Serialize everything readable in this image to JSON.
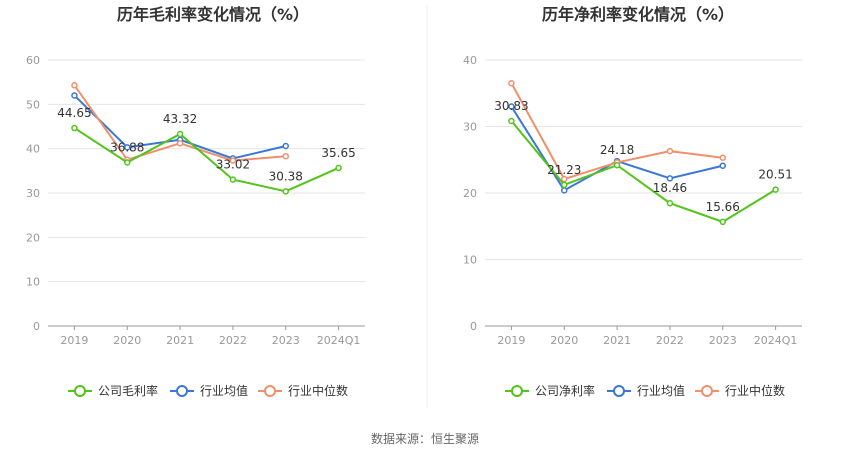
{
  "source_text": "数据来源：恒生聚源",
  "colors": {
    "company": "#52c41a",
    "industry_avg": "#3a77d8",
    "industry_median": "#f0906a"
  },
  "chart_data": [
    {
      "type": "line",
      "title": "历年毛利率变化情况（%）",
      "categories": [
        "2019",
        "2020",
        "2021",
        "2022",
        "2023",
        "2024Q1"
      ],
      "ylim": [
        0,
        60
      ],
      "yticks": [
        0,
        10,
        20,
        30,
        40,
        50,
        60
      ],
      "grid": true,
      "legend_position": "bottom",
      "series": [
        {
          "name": "公司毛利率",
          "key": "company",
          "values": [
            44.65,
            36.88,
            43.32,
            33.02,
            30.38,
            35.65
          ],
          "labels": [
            "44.65",
            "36.88",
            "43.32",
            "33.02",
            "30.38",
            "35.65"
          ]
        },
        {
          "name": "行业均值",
          "key": "industry_avg",
          "values": [
            52,
            40.3,
            42,
            37.8,
            40.6,
            null
          ]
        },
        {
          "name": "行业中位数",
          "key": "industry_median",
          "values": [
            54.3,
            37.5,
            41.2,
            37.3,
            38.3,
            null
          ]
        }
      ]
    },
    {
      "type": "line",
      "title": "历年净利率变化情况（%）",
      "categories": [
        "2019",
        "2020",
        "2021",
        "2022",
        "2023",
        "2024Q1"
      ],
      "ylim": [
        0,
        40
      ],
      "yticks": [
        0,
        10,
        20,
        30,
        40
      ],
      "grid": true,
      "legend_position": "bottom",
      "series": [
        {
          "name": "公司净利率",
          "key": "company",
          "values": [
            30.83,
            21.23,
            24.18,
            18.46,
            15.66,
            20.51
          ],
          "labels": [
            "30.83",
            "21.23",
            "24.18",
            "18.46",
            "15.66",
            "20.51"
          ]
        },
        {
          "name": "行业均值",
          "key": "industry_avg",
          "values": [
            33,
            20.4,
            24.8,
            22.2,
            24.1,
            null
          ]
        },
        {
          "name": "行业中位数",
          "key": "industry_median",
          "values": [
            36.5,
            22.1,
            24.6,
            26.3,
            25.3,
            null
          ]
        }
      ]
    }
  ]
}
